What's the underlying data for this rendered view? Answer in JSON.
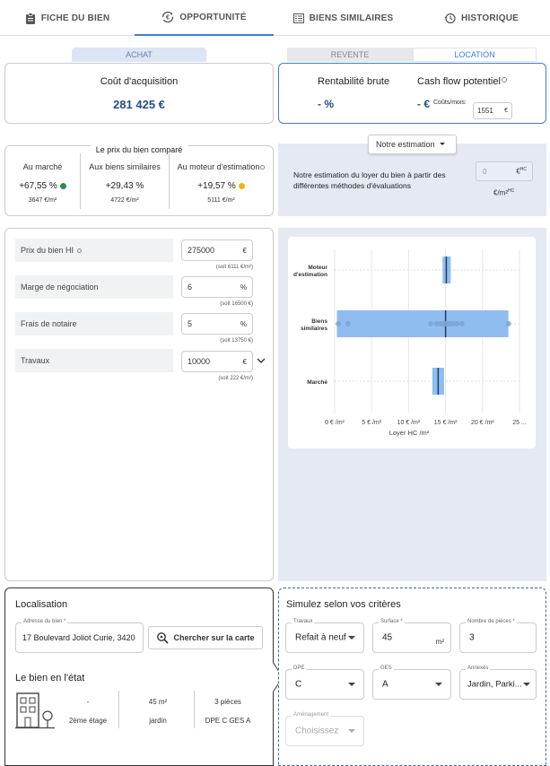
{
  "tabs": [
    {
      "label": "FICHE DU BIEN"
    },
    {
      "label": "OPPORTUNITÉ"
    },
    {
      "label": "BIENS SIMILAIRES"
    },
    {
      "label": "HISTORIQUE"
    }
  ],
  "segments": {
    "achat": "ACHAT",
    "revente": "REVENTE",
    "location": "LOCATION"
  },
  "acquisition": {
    "title": "Coût d'acquisition",
    "value": "281 425 €"
  },
  "rentabilite": {
    "title": "Rentabilité brute",
    "value": "- %"
  },
  "cashflow": {
    "title": "Cash flow potentiel",
    "value": "- €",
    "couts_label": "Coûts/mois:",
    "couts_value": "1551",
    "couts_unit": "€"
  },
  "compare": {
    "title": "Le prix du bien comparé",
    "cols": [
      {
        "label": "Au marché",
        "pct": "+67,55 %",
        "sub": "3647 €/m²",
        "dot": "#2e8b4f"
      },
      {
        "label": "Aux biens similaires",
        "pct": "+29,43 %",
        "sub": "4722 €/m²",
        "dot": ""
      },
      {
        "label": "Au moteur d'estimation",
        "pct": "+19,57 %",
        "sub": "5111 €/m²",
        "dot": "#f5b013"
      }
    ]
  },
  "estimation": {
    "button": "Notre estimation",
    "text": "Notre estimation du loyer du bien à partir des différentes méthodes d'évaluations",
    "value": "0",
    "unit": "€",
    "sup": "HC",
    "per": "€/m²",
    "per_sup": "HC"
  },
  "fields": [
    {
      "label": "Prix du bien HI",
      "value": "275000",
      "unit": "€",
      "note": "(soit 6111 €/m²)"
    },
    {
      "label": "Marge de négociation",
      "value": "6",
      "unit": "%",
      "note": "(soit 16500 €)"
    },
    {
      "label": "Frais de notaire",
      "value": "5",
      "unit": "%",
      "note": "(soit 13750 €)"
    },
    {
      "label": "Travaux",
      "value": "10000",
      "unit": "€",
      "note": "(soit 222 €/m²)"
    }
  ],
  "chart_data": {
    "type": "box",
    "categories": [
      "Moteur d'estimation",
      "Biens similaires",
      "Marché"
    ],
    "x_ticks": [
      "0 € /m²",
      "5 € /m²",
      "10 € /m²",
      "15 € /m²",
      "20 € /m²",
      "25 ..."
    ],
    "xlabel": "Loyer HC /m²",
    "xlim": [
      0,
      25
    ],
    "boxes": [
      {
        "q1": 14.6,
        "median": 15.1,
        "q3": 15.7
      },
      {
        "q1": 0.3,
        "median": 15.0,
        "q3": 23.5
      },
      {
        "q1": 13.2,
        "median": 14.0,
        "q3": 14.8
      }
    ],
    "points": [
      {
        "row": 1,
        "x": [
          0.5,
          1.8,
          13.0,
          13.8,
          14.3,
          14.7,
          15.0,
          15.3,
          15.6,
          16.0,
          16.5,
          17.2,
          23.5
        ]
      }
    ],
    "colors": {
      "box": "#90bdf0",
      "median": "#1f3c64",
      "point": "#7ca4d6"
    }
  },
  "localisation": {
    "title": "Localisation",
    "address_label": "Adresse du bien *",
    "address": "17 Boulevard Joliot Curie, 3420",
    "map_button": "Chercher sur la carte"
  },
  "etat": {
    "title": "Le bien en l'état",
    "cols": [
      {
        "top": "-",
        "bottom": "2ème étage"
      },
      {
        "top": "45 m²",
        "bottom": "jardin"
      },
      {
        "top": "3 pièces",
        "bottom": "DPE C  GES A"
      }
    ]
  },
  "simulez": {
    "title": "Simulez selon vos critères",
    "fields": [
      {
        "label": "Travaux",
        "value": "Refait à neuf"
      },
      {
        "label": "Surface *",
        "value": "45",
        "unit": "m²"
      },
      {
        "label": "Nombre de pièces *",
        "value": "3"
      },
      {
        "label": "DPE",
        "value": "C"
      },
      {
        "label": "GES",
        "value": "A"
      },
      {
        "label": "Annexes",
        "value": "Jardin, Parki..."
      },
      {
        "label": "Aménagement",
        "value": "Choisissez"
      }
    ]
  }
}
